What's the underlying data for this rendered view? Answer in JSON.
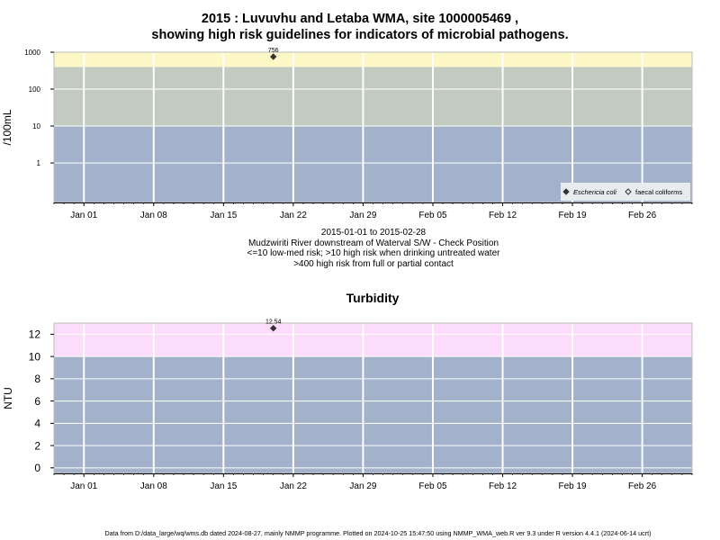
{
  "header": {
    "title_line1": "2015 : Luvuvhu and Letaba WMA, site 1000005469 ,",
    "title_line2": "showing high risk guidelines for indicators of microbial pathogens."
  },
  "caption": {
    "date_range": "2015-01-01 to 2015-02-28",
    "site_description": "Mudzwiriti River downstream of Waterval S/W - Check Position",
    "guideline_line1": "<=10 low-med risk; >10 high risk when drinking untreated water",
    "guideline_line2": ">400 high risk from full or partial contact"
  },
  "footer": {
    "text": "Data from D:/data_large/wq/wms.db dated 2024-08-27, mainly NMMP programme. Plotted on 2024-10-25 15:47:50 using NMMP_WMA_web.R ver 9.3 under R version 4.4.1 (2024-06-14 ucrt)"
  },
  "colors": {
    "band_low": "#a3b2ca",
    "band_medium": "#c3cbc0",
    "band_high_micro": "#fdf8c6",
    "band_high_turb": "#fcdcfb",
    "grid": "#ffffff",
    "point": "#333333"
  },
  "chart_data": [
    {
      "type": "scatter",
      "title": "",
      "xlabel": "",
      "ylabel": "/100mL",
      "y_scale": "log",
      "xlim": [
        "2014-12-29",
        "2015-03-03"
      ],
      "ylim": [
        0.0849,
        1000
      ],
      "x_ticks": [
        "Jan 01",
        "Jan 08",
        "Jan 15",
        "Jan 22",
        "Jan 29",
        "Feb 05",
        "Feb 12",
        "Feb 19",
        "Feb 26"
      ],
      "x_tick_dates": [
        "2015-01-01",
        "2015-01-08",
        "2015-01-15",
        "2015-01-22",
        "2015-01-29",
        "2015-02-05",
        "2015-02-12",
        "2015-02-19",
        "2015-02-26"
      ],
      "y_ticks": [
        "1",
        "10",
        "100",
        "1000"
      ],
      "y_tick_values": [
        1,
        10,
        100,
        1000
      ],
      "bands": [
        {
          "from": 0.0849,
          "to": 10,
          "color": "#a3b2ca"
        },
        {
          "from": 10,
          "to": 400,
          "color": "#c3cbc0"
        },
        {
          "from": 400,
          "to": 1000,
          "color": "#fdf8c6"
        }
      ],
      "grid": true,
      "legend_position": "bottom-right",
      "legend": [
        "Eschericia coli",
        "faecal coliforms"
      ],
      "series": [
        {
          "name": "Eschericia coli",
          "marker": "filled-diamond",
          "points": [
            {
              "x": "2015-01-20",
              "y": 756,
              "label": "756"
            }
          ]
        },
        {
          "name": "faecal coliforms",
          "marker": "open-diamond",
          "points": []
        }
      ]
    },
    {
      "type": "scatter",
      "title": "Turbidity",
      "xlabel": "",
      "ylabel": "NTU",
      "xlim": [
        "2014-12-29",
        "2015-03-03"
      ],
      "ylim": [
        -0.5,
        13
      ],
      "x_ticks": [
        "Jan 01",
        "Jan 08",
        "Jan 15",
        "Jan 22",
        "Jan 29",
        "Feb 05",
        "Feb 12",
        "Feb 19",
        "Feb 26"
      ],
      "x_tick_dates": [
        "2015-01-01",
        "2015-01-08",
        "2015-01-15",
        "2015-01-22",
        "2015-01-29",
        "2015-02-05",
        "2015-02-12",
        "2015-02-19",
        "2015-02-26"
      ],
      "y_ticks": [
        "0",
        "2",
        "4",
        "6",
        "8",
        "10",
        "12"
      ],
      "y_tick_values": [
        0,
        2,
        4,
        6,
        8,
        10,
        12
      ],
      "bands": [
        {
          "from": -0.5,
          "to": 10,
          "color": "#a3b2ca"
        },
        {
          "from": 10,
          "to": 13,
          "color": "#fcdcfb"
        }
      ],
      "grid": true,
      "series": [
        {
          "name": "",
          "marker": "filled-diamond",
          "points": [
            {
              "x": "2015-01-20",
              "y": 12.54,
              "label": "12.54"
            }
          ]
        }
      ]
    }
  ]
}
